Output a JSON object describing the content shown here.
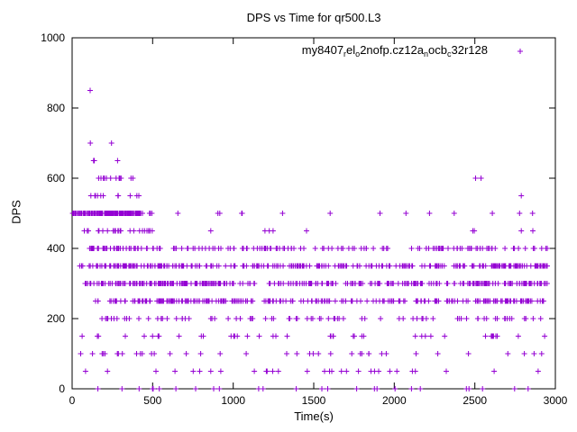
{
  "chart_data": {
    "type": "scatter",
    "title": "DPS vs Time for qr500.L3",
    "xlabel": "Time(s)",
    "ylabel": "DPS",
    "xlim": [
      0,
      3000
    ],
    "ylim": [
      0,
      1000
    ],
    "xticks": [
      0,
      500,
      1000,
      1500,
      2000,
      2500,
      3000
    ],
    "yticks": [
      0,
      200,
      400,
      600,
      800,
      1000
    ],
    "grid": false,
    "marker": "plus",
    "color": "#9400d3",
    "legend_position": "top-right-inside",
    "legend_segments": [
      {
        "text": "my8407"
      },
      {
        "text": "r",
        "sub": true
      },
      {
        "text": "el"
      },
      {
        "text": "o",
        "sub": true
      },
      {
        "text": "2nofp.cz12a"
      },
      {
        "text": "n",
        "sub": true
      },
      {
        "text": "ocb"
      },
      {
        "text": "c",
        "sub": true
      },
      {
        "text": "32r128"
      }
    ],
    "seed": 7,
    "note": "Points cluster in horizontal bands at discrete DPS levels; bands = [dps, x_start, x_end, approx_count]",
    "bands": [
      [
        850,
        112,
        128,
        1
      ],
      [
        700,
        112,
        128,
        1
      ],
      [
        700,
        225,
        245,
        1
      ],
      [
        650,
        120,
        145,
        2
      ],
      [
        650,
        270,
        300,
        1
      ],
      [
        600,
        110,
        460,
        12
      ],
      [
        600,
        2490,
        2540,
        2
      ],
      [
        550,
        90,
        445,
        11
      ],
      [
        550,
        2770,
        2800,
        1
      ],
      [
        500,
        2,
        428,
        170
      ],
      [
        500,
        432,
        500,
        4
      ],
      [
        500,
        640,
        660,
        1
      ],
      [
        500,
        860,
        1060,
        4
      ],
      [
        500,
        1290,
        1320,
        1
      ],
      [
        500,
        1590,
        1620,
        1
      ],
      [
        500,
        1890,
        1920,
        1
      ],
      [
        500,
        2050,
        2080,
        1
      ],
      [
        500,
        2200,
        2230,
        1
      ],
      [
        500,
        2350,
        2380,
        1
      ],
      [
        500,
        2590,
        2620,
        1
      ],
      [
        500,
        2760,
        2790,
        1
      ],
      [
        500,
        2850,
        2880,
        1
      ],
      [
        450,
        25,
        520,
        24
      ],
      [
        450,
        860,
        1260,
        4
      ],
      [
        450,
        1450,
        1480,
        1
      ],
      [
        450,
        2450,
        2900,
        4
      ],
      [
        400,
        95,
        470,
        40
      ],
      [
        400,
        470,
        1500,
        55
      ],
      [
        400,
        1500,
        2950,
        70
      ],
      [
        350,
        25,
        150,
        6
      ],
      [
        350,
        150,
        700,
        80
      ],
      [
        350,
        700,
        1600,
        70
      ],
      [
        350,
        1600,
        2600,
        70
      ],
      [
        350,
        2600,
        2950,
        55
      ],
      [
        300,
        80,
        300,
        22
      ],
      [
        300,
        300,
        1000,
        100
      ],
      [
        300,
        1000,
        1800,
        60
      ],
      [
        300,
        1800,
        2400,
        45
      ],
      [
        300,
        2400,
        2950,
        65
      ],
      [
        250,
        120,
        400,
        18
      ],
      [
        250,
        400,
        1100,
        85
      ],
      [
        250,
        1100,
        1900,
        50
      ],
      [
        250,
        1900,
        2500,
        40
      ],
      [
        250,
        2500,
        2950,
        60
      ],
      [
        200,
        100,
        600,
        18
      ],
      [
        200,
        600,
        1500,
        25
      ],
      [
        200,
        1500,
        2400,
        20
      ],
      [
        200,
        2400,
        2950,
        20
      ],
      [
        150,
        60,
        2950,
        42
      ],
      [
        100,
        50,
        2950,
        38
      ],
      [
        50,
        80,
        2920,
        30
      ],
      [
        0,
        30,
        2900,
        26
      ]
    ]
  }
}
